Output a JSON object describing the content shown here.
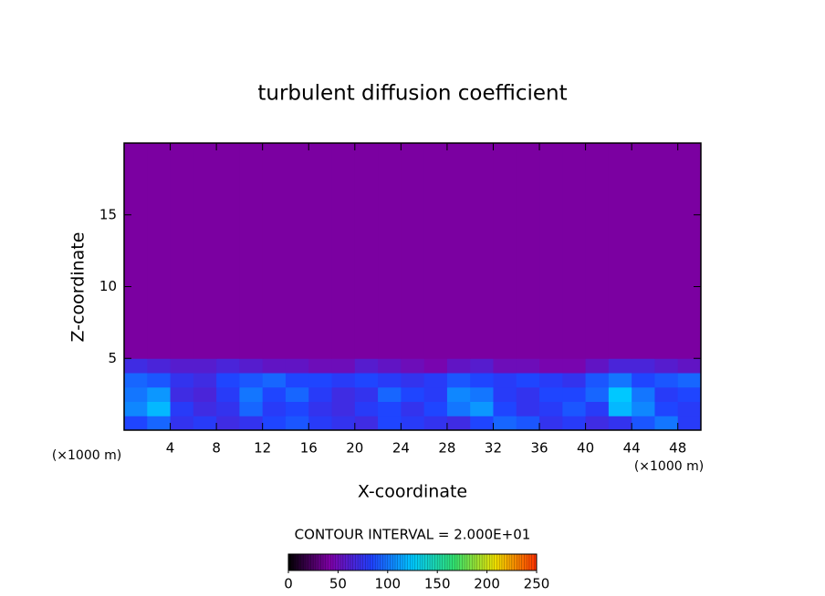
{
  "chart_data": {
    "type": "heatmap",
    "title": "turbulent diffusion coefficient",
    "xlabel": "X-coordinate",
    "ylabel": "Z-coordinate",
    "x_unit_label": "(×1000 m)",
    "annotation": "CONTOUR INTERVAL = 2.000E+01",
    "xlim": [
      0,
      50
    ],
    "ylim": [
      0,
      20
    ],
    "xticks": [
      4,
      8,
      12,
      16,
      20,
      24,
      28,
      32,
      36,
      40,
      44,
      48
    ],
    "yticks": [
      5,
      10,
      15
    ],
    "field": {
      "x_edges": [
        0,
        2,
        4,
        6,
        8,
        10,
        12,
        14,
        16,
        18,
        20,
        22,
        24,
        26,
        28,
        30,
        32,
        34,
        36,
        38,
        40,
        42,
        44,
        46,
        48,
        50
      ],
      "z_edges": [
        0,
        1,
        2,
        3,
        4,
        5,
        20
      ],
      "values": [
        [
          85,
          95,
          75,
          80,
          70,
          75,
          85,
          90,
          80,
          75,
          70,
          85,
          80,
          75,
          70,
          85,
          95,
          90,
          75,
          80,
          70,
          75,
          90,
          100,
          80
        ],
        [
          105,
          120,
          80,
          70,
          75,
          95,
          80,
          85,
          75,
          70,
          80,
          85,
          75,
          85,
          100,
          110,
          85,
          75,
          80,
          90,
          80,
          120,
          105,
          85,
          80
        ],
        [
          100,
          110,
          70,
          65,
          80,
          100,
          85,
          95,
          80,
          70,
          75,
          95,
          85,
          80,
          105,
          100,
          80,
          75,
          85,
          85,
          95,
          125,
          100,
          80,
          85
        ],
        [
          95,
          90,
          75,
          70,
          85,
          90,
          95,
          85,
          85,
          80,
          85,
          80,
          75,
          80,
          90,
          85,
          80,
          85,
          80,
          75,
          90,
          100,
          85,
          90,
          95
        ],
        [
          70,
          65,
          60,
          60,
          65,
          60,
          55,
          55,
          50,
          50,
          60,
          55,
          50,
          45,
          55,
          60,
          50,
          50,
          45,
          45,
          55,
          65,
          65,
          60,
          55
        ],
        [
          40,
          40,
          40,
          40,
          40,
          40,
          40,
          40,
          40,
          40,
          40,
          40,
          40,
          40,
          40,
          40,
          40,
          40,
          40,
          40,
          40,
          40,
          40,
          40,
          40
        ]
      ]
    },
    "colormap": [
      "#000000",
      "#8000a8",
      "#2040ff",
      "#00c8ff",
      "#30e070",
      "#f0e000",
      "#ff3000"
    ],
    "colorbar": {
      "lim": [
        0,
        250
      ],
      "ticks": [
        0,
        50,
        100,
        150,
        200,
        250
      ]
    }
  }
}
